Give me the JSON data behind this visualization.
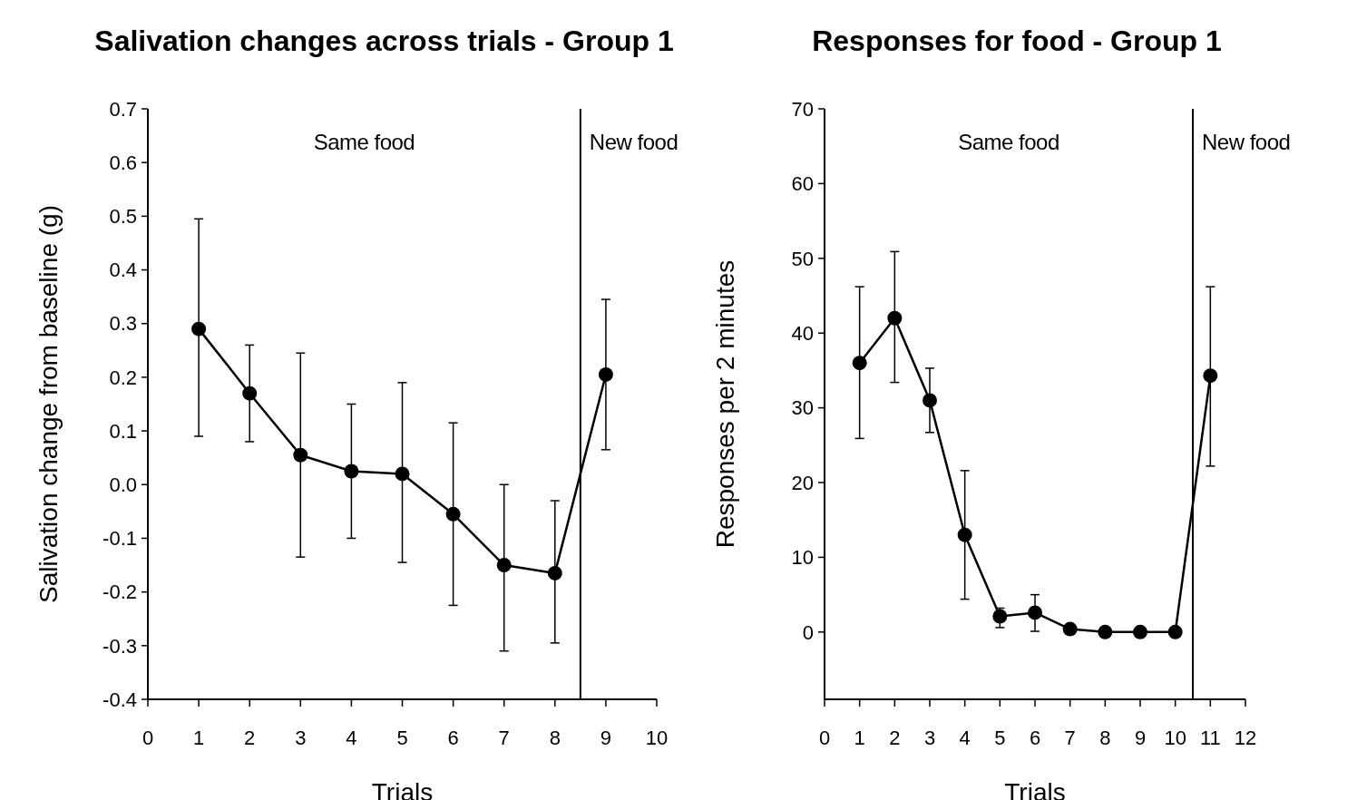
{
  "chart_data": [
    {
      "type": "line",
      "title": "Salivation changes across trials - Group 1",
      "xlabel": "Trials",
      "ylabel": "Salivation change from baseline (g)",
      "x": [
        1,
        2,
        3,
        4,
        5,
        6,
        7,
        8,
        9
      ],
      "xlim": [
        0,
        10
      ],
      "xticks": [
        0,
        1,
        2,
        3,
        4,
        5,
        6,
        7,
        8,
        9,
        10
      ],
      "ylim": [
        -0.4,
        0.7
      ],
      "yticks": [
        {
          "value": -0.4,
          "label": "-0.4"
        },
        {
          "value": -0.3,
          "label": "-0.3"
        },
        {
          "value": -0.2,
          "label": "-0.2"
        },
        {
          "value": -0.1,
          "label": "-0.1"
        },
        {
          "value": 0,
          "label": "0.0"
        },
        {
          "value": 0.1,
          "label": "0.1"
        },
        {
          "value": 0.2,
          "label": "0.2"
        },
        {
          "value": 0.3,
          "label": "0.3"
        },
        {
          "value": 0.4,
          "label": "0.4"
        },
        {
          "value": 0.5,
          "label": "0.5"
        },
        {
          "value": 0.6,
          "label": "0.6"
        },
        {
          "value": 0.7,
          "label": "0.7"
        }
      ],
      "marker": "circle",
      "line_style": "solid",
      "series": [
        {
          "color": "#000000",
          "values": [
            0.29,
            0.17,
            0.055,
            0.025,
            0.02,
            -0.055,
            -0.15,
            -0.165,
            0.205
          ],
          "errors": [
            [
              0.09,
              0.495
            ],
            [
              0.08,
              0.26
            ],
            [
              -0.135,
              0.245
            ],
            [
              -0.1,
              0.15
            ],
            [
              -0.145,
              0.19
            ],
            [
              -0.225,
              0.115
            ],
            [
              -0.31,
              0.0
            ],
            [
              -0.295,
              -0.03
            ],
            [
              0.065,
              0.345
            ]
          ]
        }
      ],
      "ref_lines": [
        {
          "axis": "x",
          "value": 8.5,
          "color": "#000000"
        }
      ],
      "annotations": [
        "Same food",
        "New food"
      ]
    },
    {
      "type": "line",
      "title": "Responses for food - Group 1",
      "xlabel": "Trials",
      "ylabel": "Responses per 2 minutes",
      "x": [
        1,
        2,
        3,
        4,
        5,
        6,
        7,
        8,
        9,
        10,
        11
      ],
      "xlim": [
        0,
        12
      ],
      "xticks": [
        0,
        1,
        2,
        3,
        4,
        5,
        6,
        7,
        8,
        9,
        10,
        11,
        12
      ],
      "ylim": [
        -9,
        70
      ],
      "yticks": [
        0,
        10,
        20,
        30,
        40,
        50,
        60,
        70
      ],
      "marker": "circle",
      "line_style": "solid",
      "series": [
        {
          "color": "#000000",
          "values": [
            36,
            42,
            31,
            13,
            2.1,
            2.6,
            0.4,
            0,
            0,
            0,
            34.3
          ],
          "errors": [
            [
              25.9,
              46.2
            ],
            [
              33.4,
              50.9
            ],
            [
              26.7,
              35.3
            ],
            [
              4.4,
              21.6
            ],
            [
              0.6,
              3.2
            ],
            [
              0.1,
              5.0
            ],
            null,
            null,
            null,
            null,
            [
              22.2,
              46.2
            ]
          ]
        }
      ],
      "ref_lines": [
        {
          "axis": "x",
          "value": 10.5,
          "color": "#000000"
        }
      ],
      "annotations": [
        "Same food",
        "New food"
      ]
    }
  ]
}
